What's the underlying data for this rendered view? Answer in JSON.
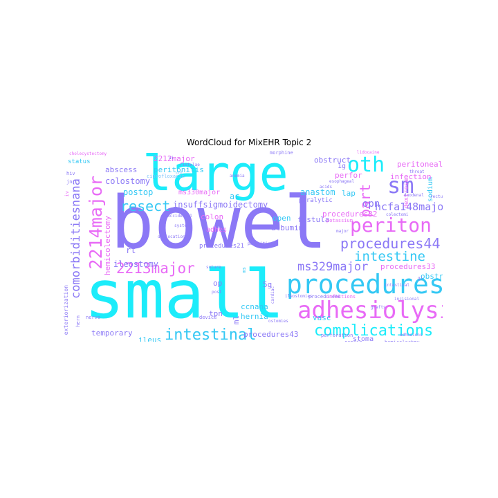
{
  "title": "WordCloud for MixEHR Topic 2",
  "palette": {
    "cyan": "#1cecfa",
    "violet": "#8b78f6",
    "magenta": "#e86af6",
    "light": "#7cc3fb"
  },
  "words": {
    "bowel": "bowel",
    "small": "small",
    "large": "large",
    "procedures": "procedures",
    "adhesiolysis": "adhesiolysis",
    "periton": "periton",
    "oth": "oth",
    "sm": "sm",
    "m2214major": "2214major",
    "comorbiditiesnana": "comorbiditiesnana",
    "m2213major": "2213major",
    "resect": "resect",
    "procedures44": "procedures44",
    "intestine": "intestine",
    "complications": "complications",
    "intestinal": "intestinal",
    "ms329major": "ms329major",
    "hcfa148major": "hcfa148major",
    "part": "part",
    "opn": "opn",
    "colostomy": "colostomy",
    "postop": "postop",
    "ms330major": "ms330major",
    "insuffsigmoidectomy": "insuffsigmoidectomy",
    "anastom": "anastom",
    "fistula": "fistula",
    "procedures32": "procedures32",
    "procedures33": "procedures33",
    "procedures43": "procedures43",
    "ileostomy": "ileostomy",
    "hemicolectomy": "hemicolectomy",
    "abscess": "abscess",
    "m2212major": "2212major",
    "peritonitis": "peritonitis",
    "obstruct": "obstruct",
    "peritoneal": "peritoneal",
    "infection": "infection",
    "albumin": "albumin",
    "open": "open",
    "lap": "lap",
    "vasc": "vasc",
    "ccnana": "ccnana",
    "hernia": "hernia",
    "tpn": "tpn",
    "temporary": "temporary",
    "ileus": "ileus",
    "stoma": "stoma",
    "colon": "colon",
    "adhes": "adhes",
    "procedures21": "procedures21",
    "obstr": "obstr",
    "rt": "rt",
    "op": "op",
    "ac": "ac",
    "perfor": "perfor",
    "sodium": "sodium",
    "dextrose": "dextrose",
    "status": "status",
    "paralytic": "paralytic",
    "lg": "1g",
    "m5g": "5g",
    "perforation": "perforation",
    "repair": "repair",
    "infections": "infections",
    "morphine": "morphine",
    "ciprofloxacin": "ciprofloxacin",
    "potassium": "potassium",
    "procedure66": "procedure66",
    "exteriorization": "exteriorization",
    "hemicolectmy": "hemicolectmy",
    "adhesions": "adhesions",
    "device": "device",
    "suture": "suture",
    "system": "system",
    "major": "major",
    "acids": "acids",
    "post": "post",
    "duodenal": "duodenal",
    "throat": "throat",
    "lidocaine": "lidocaine",
    "esophageal": "esophageal",
    "hiv": "hiv",
    "parasitic": "parasitic",
    "ostomies": "ostomies",
    "hern": "hern",
    "chl": "chl",
    "iv": "iv",
    "jn": "jn",
    "ml": "ml",
    "rectus": "rectus",
    "gi": "gi",
    "intestinal2": "intestinal",
    "accidental": "accidental",
    "ms": "ms",
    "colectomi": "colectomi",
    "ui": "ui",
    "incisional": "incisional",
    "nerve": "nerve",
    "grafts": "grafts",
    "fistulae": "fistulae",
    "ileostomies": "ileostomies",
    "anemia": "anemia",
    "cholecystectomy": "cholecystectomy",
    "dislocation": "dislocation",
    "cardiac": "cardiac"
  }
}
